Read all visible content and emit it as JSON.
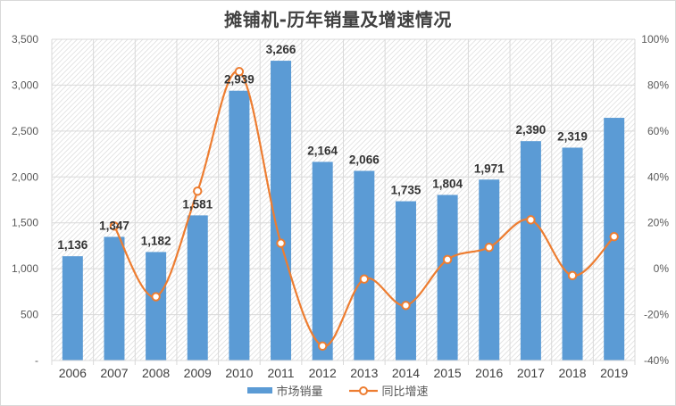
{
  "chart_data": {
    "type": "bar+line",
    "title": "摊铺机-历年销量及增速情况",
    "categories": [
      "2006",
      "2007",
      "2008",
      "2009",
      "2010",
      "2011",
      "2012",
      "2013",
      "2014",
      "2015",
      "2016",
      "2017",
      "2018",
      "2019"
    ],
    "series": [
      {
        "name": "市场销量",
        "type": "bar",
        "axis": "left",
        "color": "#5b9bd5",
        "values": [
          1136,
          1347,
          1182,
          1581,
          2939,
          3266,
          2164,
          2066,
          1735,
          1804,
          1971,
          2390,
          2319,
          2644
        ],
        "labels": [
          "1,136",
          "1,347",
          "1,182",
          "1,581",
          "2,939",
          "3,266",
          "2,164",
          "2,066",
          "1,735",
          "1,804",
          "1,971",
          "2,390",
          "2,319",
          ""
        ]
      },
      {
        "name": "同比增速",
        "type": "line",
        "axis": "right",
        "color": "#ed7d31",
        "smooth": true,
        "values": [
          null,
          18.6,
          -12.2,
          33.8,
          85.9,
          11.1,
          -33.7,
          -4.5,
          -16.0,
          4.0,
          9.3,
          21.3,
          -3.0,
          14.0
        ]
      }
    ],
    "left_axis": {
      "ylim": [
        0,
        3500
      ],
      "ticks": [
        "-",
        "500",
        "1,000",
        "1,500",
        "2,000",
        "2,500",
        "3,000",
        "3,500"
      ]
    },
    "right_axis": {
      "ylim": [
        -40,
        100
      ],
      "ticks": [
        "-40%",
        "-20%",
        "0%",
        "20%",
        "40%",
        "60%",
        "80%",
        "100%"
      ]
    },
    "xlabel": "",
    "ylabel": "",
    "grid": true,
    "legend_position": "bottom"
  },
  "legend": {
    "bar_label": "市场销量",
    "line_label": "同比增速"
  }
}
